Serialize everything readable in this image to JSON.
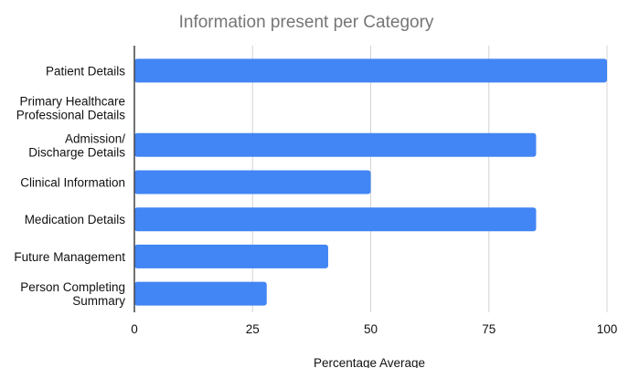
{
  "chart_data": {
    "type": "bar",
    "orientation": "horizontal",
    "title": "Information present per Category",
    "xlabel": "Percentage Average",
    "ylabel": "",
    "categories": [
      [
        "Patient Details"
      ],
      [
        "Primary Healthcare",
        "Professional Details"
      ],
      [
        "Admission/",
        "Discharge Details"
      ],
      [
        "Clinical Information"
      ],
      [
        "Medication Details"
      ],
      [
        "Future Management"
      ],
      [
        "Person Completing",
        "Summary"
      ]
    ],
    "values": [
      100,
      0,
      85,
      50,
      85,
      41,
      28
    ],
    "xlim": [
      0,
      100
    ],
    "xticks": [
      "0",
      "25",
      "50",
      "75",
      "100"
    ],
    "grid": "vertical",
    "legend": "none",
    "bar_color": "#4285F4"
  }
}
